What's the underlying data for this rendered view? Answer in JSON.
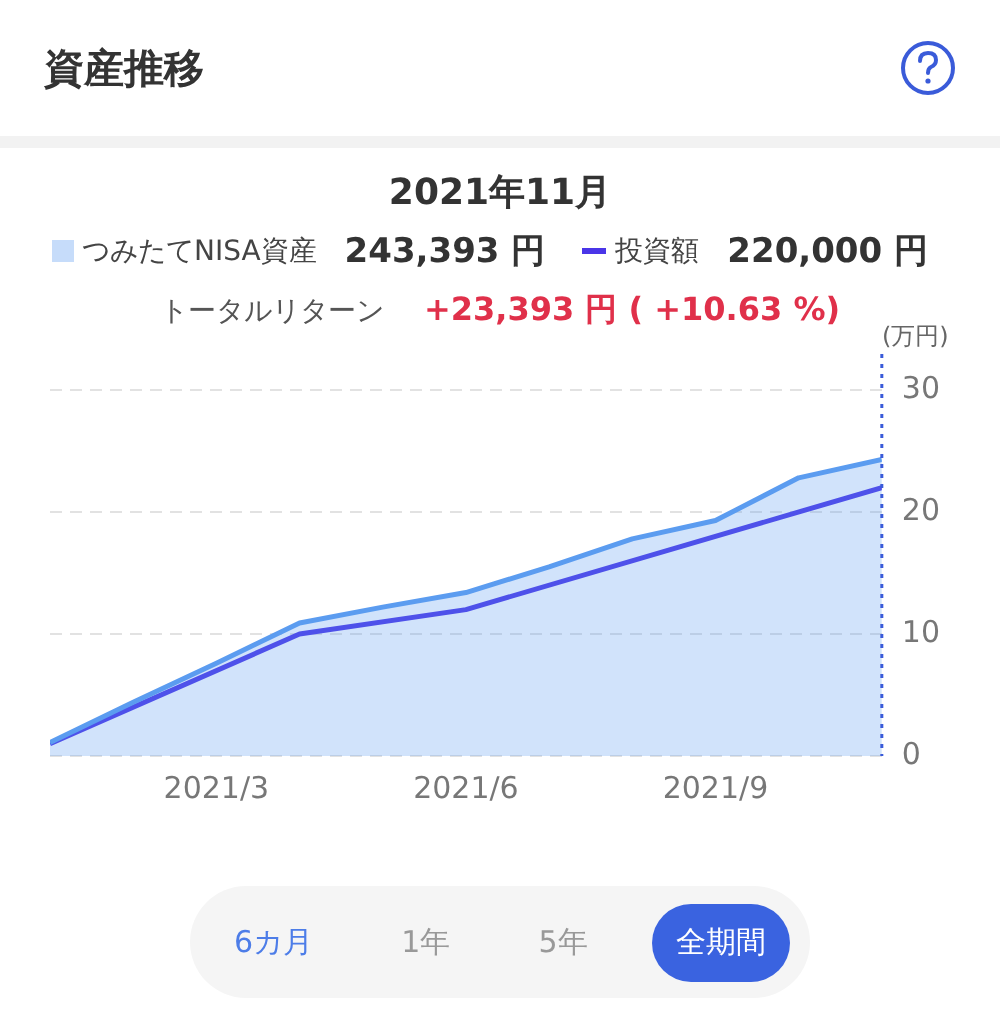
{
  "chart_data": {
    "type": "area",
    "title": "資産推移",
    "subtitle": "2021年11月",
    "ylabel": "(万円)",
    "x": [
      "2021-01",
      "2021-02",
      "2021-03",
      "2021-04",
      "2021-05",
      "2021-06",
      "2021-07",
      "2021-08",
      "2021-09",
      "2021-10",
      "2021-11"
    ],
    "xlim": [
      "2021-01",
      "2021-11"
    ],
    "xticks": [
      {
        "value": "2021-03",
        "label": "2021/3"
      },
      {
        "value": "2021-06",
        "label": "2021/6"
      },
      {
        "value": "2021-09",
        "label": "2021/9"
      }
    ],
    "ylim": [
      0,
      30
    ],
    "yticks": [
      0,
      10,
      20,
      30
    ],
    "series": [
      {
        "name": "つみたてNISA資産",
        "color": "#5b9cf0",
        "values": [
          1.1,
          4.4,
          7.6,
          10.9,
          12.2,
          13.4,
          15.5,
          17.8,
          19.3,
          22.8,
          24.3
        ]
      },
      {
        "name": "投資額",
        "type": "line",
        "color": "#4a35e8",
        "x": [
          "2021-01",
          "2021-04",
          "2021-06",
          "2021-11"
        ],
        "values": [
          1.0,
          10.0,
          12.0,
          22.0
        ]
      }
    ],
    "ref_lines": [
      {
        "axis": "x",
        "value": "2021-11",
        "color": "#3a5bd9",
        "line_style": "dotted"
      }
    ],
    "annotations": [
      "243,393 円",
      "220,000 円",
      "トータルリターン",
      "+23,393 円 ( +10.63 %)",
      "6カ月",
      "1年",
      "5年",
      "全期間"
    ],
    "grid": "y",
    "legend": "top",
    "marker": "none",
    "line_style": "solid"
  }
}
